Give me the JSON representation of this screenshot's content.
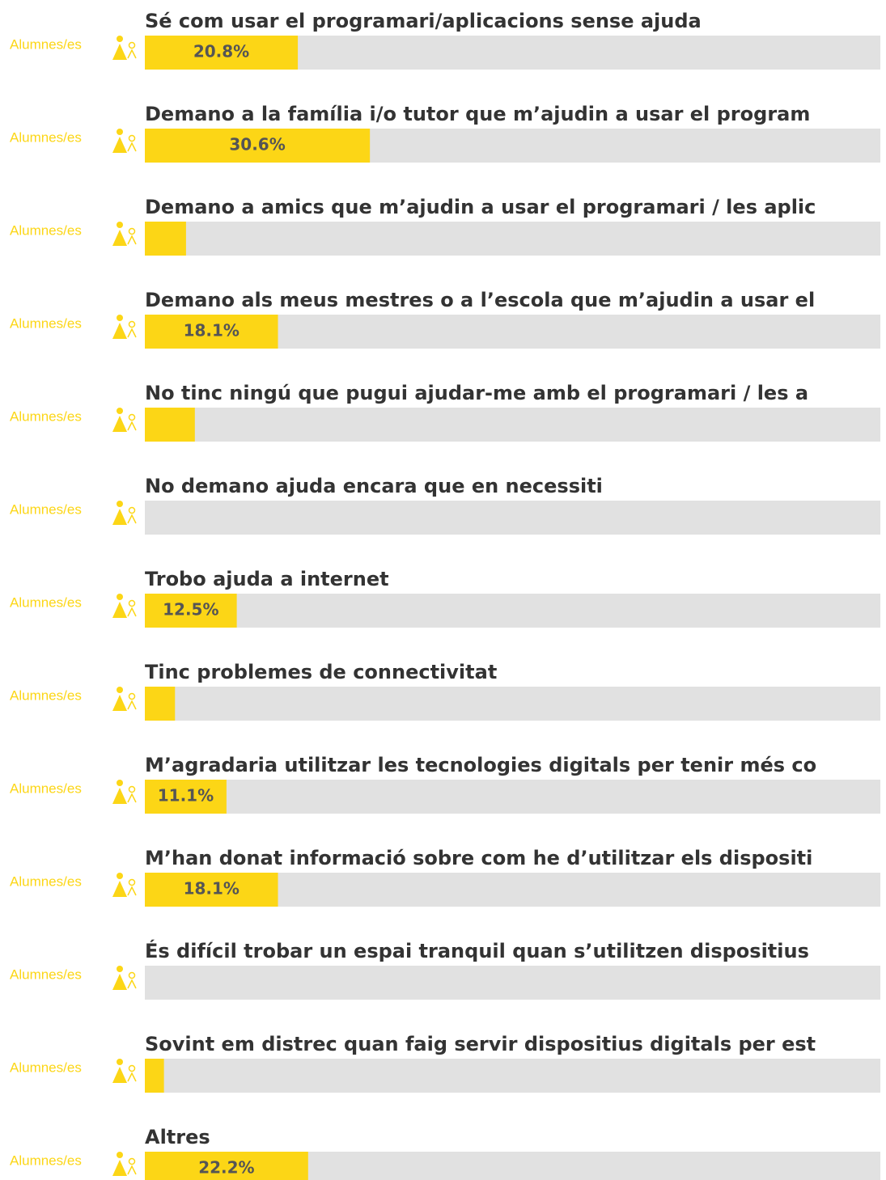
{
  "chart_data": {
    "type": "bar",
    "categories": [
      "Sé com usar el programari/aplicacions sense ajuda",
      "Demano a la família i/o tutor que m’ajudin a usar el program",
      "Demano a amics que m’ajudin a usar el programari / les aplic",
      "Demano als meus mestres o a l’escola que m’ajudin a usar el",
      "No tinc ningú que pugui ajudar-me amb el programari / les a",
      "No demano ajuda encara que en necessiti",
      "Trobo ajuda a internet",
      "Tinc problemes de connectivitat",
      "M’agradaria utilitzar les tecnologies digitals per tenir més co",
      "M’han donat informació sobre com he d’utilitzar els dispositi",
      "És difícil trobar un espai tranquil quan s’utilitzen dispositius",
      "Sovint em distrec quan faig servir dispositius digitals per est",
      "Altres"
    ],
    "series": [
      {
        "name": "Alumnes/es",
        "color": "#fcd616",
        "values": [
          20.8,
          30.6,
          5.6,
          18.1,
          6.8,
          0,
          12.5,
          4.1,
          11.1,
          18.1,
          0,
          2.6,
          22.2
        ],
        "value_labels": [
          "20.8%",
          "30.6%",
          null,
          "18.1%",
          null,
          null,
          "12.5%",
          null,
          "11.1%",
          "18.1%",
          null,
          null,
          "22.2%"
        ]
      }
    ],
    "xlim": [
      0,
      100
    ]
  }
}
